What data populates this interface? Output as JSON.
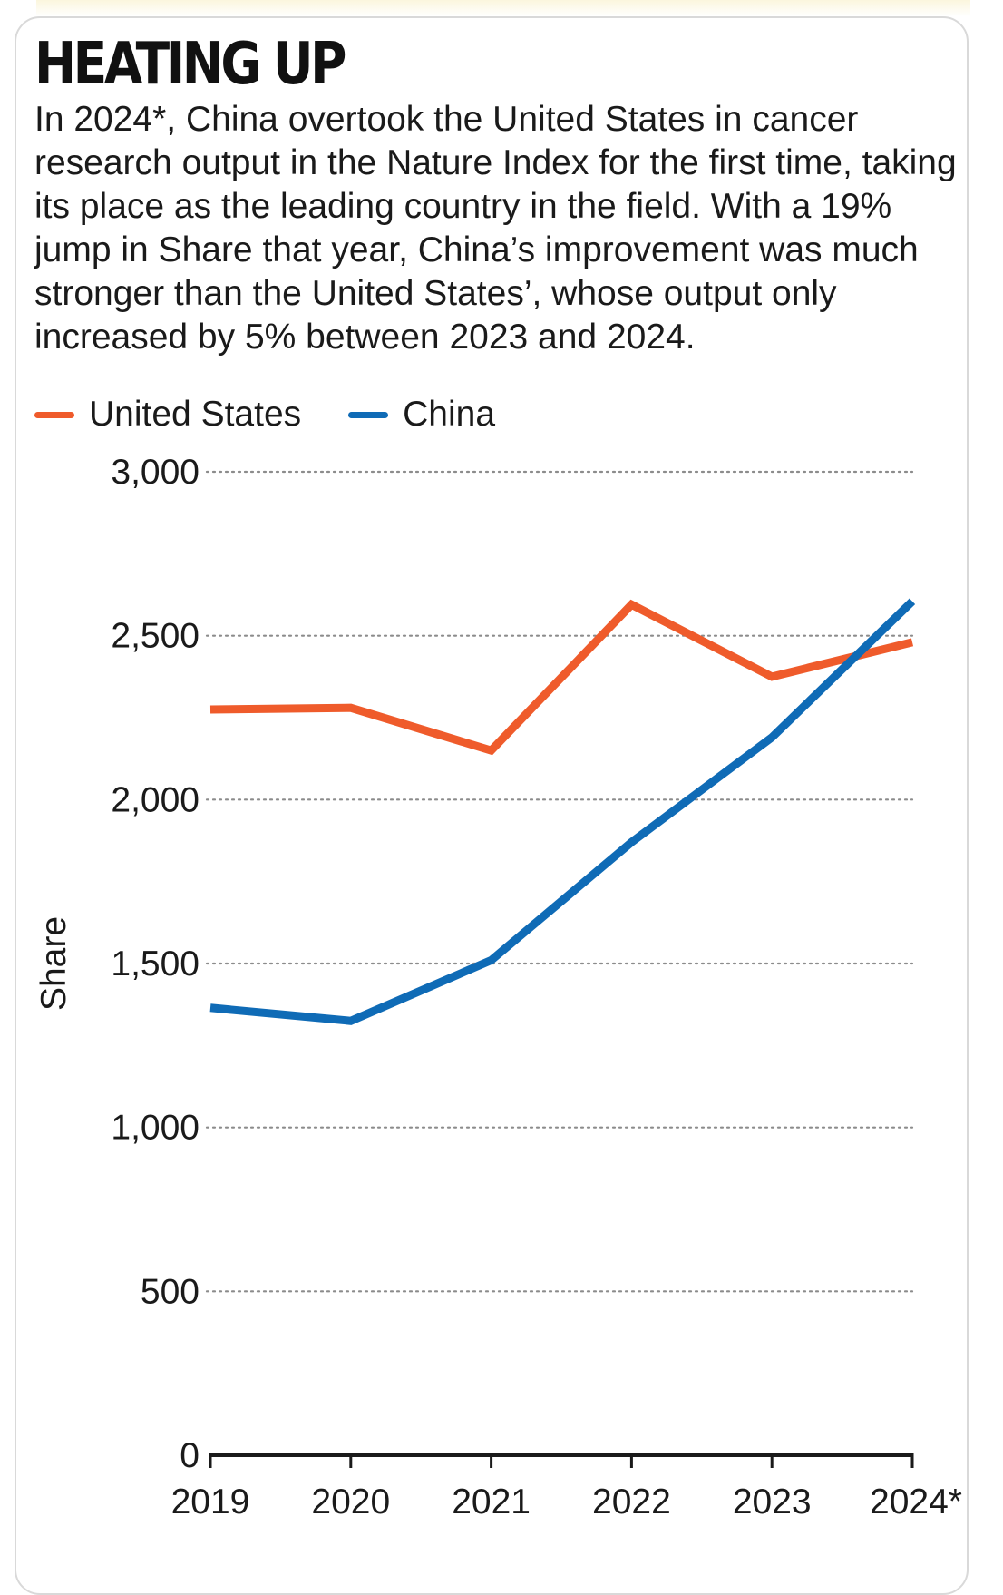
{
  "header": {
    "title": "HEATING UP",
    "description": "In 2024*, China overtook the United States in cancer research output in the Nature Index for the first time, taking its place as the leading country in the field. With a 19% jump in Share that year, China’s improvement was much stronger than the United States’, whose output only increased by 5% between 2023 and 2024."
  },
  "colors": {
    "united_states": "#ef5b2b",
    "china": "#0f6bb6",
    "grid": "#8c8c8c",
    "axis": "#1a1a1a"
  },
  "chart_data": {
    "type": "line",
    "title": "HEATING UP",
    "xlabel": "",
    "ylabel": "Share",
    "categories": [
      "2019",
      "2020",
      "2021",
      "2022",
      "2023",
      "2024*"
    ],
    "series": [
      {
        "name": "United States",
        "color": "#ef5b2b",
        "values": [
          2275,
          2280,
          2150,
          2595,
          2375,
          2480
        ]
      },
      {
        "name": "China",
        "color": "#0f6bb6",
        "values": [
          1365,
          1325,
          1510,
          1870,
          2190,
          2605
        ]
      }
    ],
    "ylim": [
      0,
      3000
    ],
    "yticks": [
      0,
      500,
      1000,
      1500,
      2000,
      2500,
      3000
    ],
    "ytick_labels": [
      "0",
      "500",
      "1,000",
      "1,500",
      "2,000",
      "2,500",
      "3,000"
    ],
    "grid": "horizontal dotted",
    "legend_position": "top-left"
  }
}
